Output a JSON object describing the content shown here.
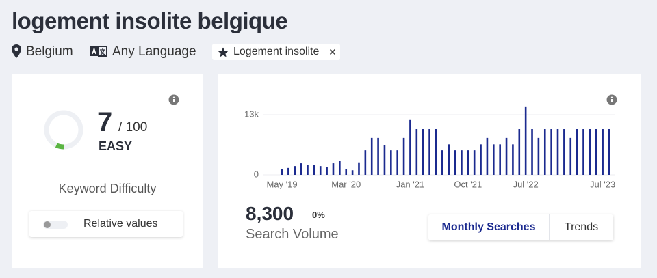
{
  "header": {
    "title": "logement insolite belgique",
    "location": "Belgium",
    "language": "Any Language",
    "tag": "Logement insolite"
  },
  "difficulty": {
    "score": 7,
    "separator": "/",
    "max": 100,
    "level": "EASY",
    "label": "Keyword Difficulty",
    "toggle_label": "Relative values"
  },
  "volume": {
    "value": "8,300",
    "change": "0%",
    "label": "Search Volume",
    "tabs": [
      "Monthly Searches",
      "Trends"
    ]
  },
  "chart_data": {
    "type": "bar",
    "color": "#1b2a8f",
    "categories": [
      "May '19",
      null,
      null,
      null,
      null,
      null,
      null,
      null,
      null,
      null,
      "Mar '20",
      null,
      null,
      null,
      null,
      null,
      null,
      null,
      null,
      null,
      "Jan '21",
      null,
      null,
      null,
      null,
      null,
      null,
      null,
      null,
      "Oct '21",
      null,
      null,
      null,
      null,
      null,
      null,
      null,
      null,
      "Jul '22",
      null,
      null,
      null,
      null,
      null,
      null,
      null,
      null,
      null,
      null,
      null,
      "Jul '23",
      null
    ],
    "values": [
      1200,
      1500,
      1900,
      2500,
      2100,
      2100,
      1900,
      1700,
      2500,
      3000,
      1300,
      1000,
      2700,
      5300,
      8000,
      8000,
      6400,
      5300,
      5300,
      8000,
      12000,
      9900,
      9900,
      9900,
      9900,
      5300,
      6600,
      5300,
      5300,
      5300,
      5300,
      6600,
      8000,
      6600,
      6600,
      8000,
      6600,
      9900,
      14800,
      9900,
      8000,
      9900,
      9900,
      9900,
      9900,
      8000,
      9900,
      9900,
      9900,
      9900,
      9900,
      9900
    ],
    "ylim": [
      0,
      15000
    ],
    "yticks": [
      0,
      {
        "value": 13000,
        "label": "13k"
      }
    ],
    "grid": true
  }
}
